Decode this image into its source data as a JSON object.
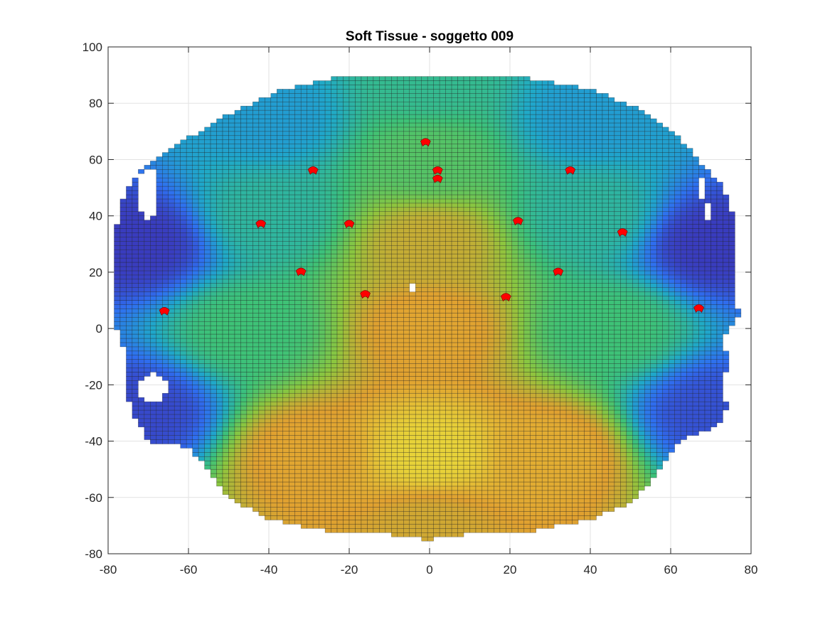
{
  "chart_data": {
    "type": "heatmap",
    "title": "Soft Tissue -  soggetto 009",
    "xlabel": "",
    "ylabel": "",
    "xlim": [
      -80,
      80
    ],
    "ylim": [
      -80,
      100
    ],
    "x_ticks": [
      "-80",
      "-60",
      "-40",
      "-20",
      "0",
      "20",
      "40",
      "60",
      "80"
    ],
    "y_ticks": [
      "100",
      "80",
      "60",
      "40",
      "20",
      "0",
      "-20",
      "-40",
      "-60",
      "-80"
    ],
    "grid": true,
    "surface": {
      "colormap": [
        "#3e26a8",
        "#2f6ff0",
        "#1fa8c9",
        "#3ec277",
        "#8cc63f",
        "#e0a030",
        "#e8d93a"
      ],
      "grid_step": 1.5,
      "edge_color": "#1a1a1a"
    },
    "outline": [
      [
        -20,
        90
      ],
      [
        20,
        90
      ],
      [
        40,
        85
      ],
      [
        52,
        78
      ],
      [
        62,
        68
      ],
      [
        68,
        58
      ],
      [
        72,
        52
      ],
      [
        75,
        45
      ],
      [
        76,
        30
      ],
      [
        76,
        15
      ],
      [
        77,
        5
      ],
      [
        75,
        0
      ],
      [
        72,
        -5
      ],
      [
        75,
        -10
      ],
      [
        73,
        -20
      ],
      [
        74,
        -28
      ],
      [
        72,
        -35
      ],
      [
        62,
        -40
      ],
      [
        58,
        -48
      ],
      [
        55,
        -55
      ],
      [
        50,
        -62
      ],
      [
        40,
        -68
      ],
      [
        25,
        -72
      ],
      [
        10,
        -73
      ],
      [
        0,
        -75
      ],
      [
        -10,
        -73
      ],
      [
        -25,
        -72
      ],
      [
        -40,
        -68
      ],
      [
        -50,
        -60
      ],
      [
        -55,
        -50
      ],
      [
        -60,
        -42
      ],
      [
        -70,
        -40
      ],
      [
        -74,
        -30
      ],
      [
        -76,
        -20
      ],
      [
        -76,
        -8
      ],
      [
        -78,
        0
      ],
      [
        -78,
        15
      ],
      [
        -78,
        35
      ],
      [
        -76,
        48
      ],
      [
        -72,
        57
      ],
      [
        -62,
        66
      ],
      [
        -50,
        76
      ],
      [
        -38,
        84
      ]
    ],
    "holes": [
      {
        "x": -70,
        "y": 48,
        "rx": 2.5,
        "ry": 9
      },
      {
        "x": -69,
        "y": -21,
        "rx": 3.5,
        "ry": 5
      },
      {
        "x": 68,
        "y": 50,
        "rx": 1.2,
        "ry": 4
      },
      {
        "x": 69,
        "y": 42,
        "rx": 1.0,
        "ry": 3
      },
      {
        "x": -4,
        "y": 15,
        "rx": 0.9,
        "ry": 1.6
      }
    ],
    "surface_levels": [
      {
        "x": -72,
        "y": 30,
        "v": 0.05
      },
      {
        "x": 70,
        "y": 30,
        "v": 0.05
      },
      {
        "x": -72,
        "y": -30,
        "v": 0.08
      },
      {
        "x": 70,
        "y": -30,
        "v": 0.1
      },
      {
        "x": 0,
        "y": 88,
        "v": 0.45
      },
      {
        "x": -40,
        "y": 75,
        "v": 0.3
      },
      {
        "x": 40,
        "y": 75,
        "v": 0.3
      },
      {
        "x": 0,
        "y": 60,
        "v": 0.55
      },
      {
        "x": 0,
        "y": 30,
        "v": 0.78
      },
      {
        "x": 0,
        "y": 0,
        "v": 0.85
      },
      {
        "x": 0,
        "y": -45,
        "v": 0.98
      },
      {
        "x": -30,
        "y": -45,
        "v": 0.85
      },
      {
        "x": 30,
        "y": -45,
        "v": 0.87
      },
      {
        "x": -45,
        "y": 0,
        "v": 0.5
      },
      {
        "x": 45,
        "y": 0,
        "v": 0.5
      },
      {
        "x": 0,
        "y": -70,
        "v": 0.8
      },
      {
        "x": -40,
        "y": 40,
        "v": 0.42
      },
      {
        "x": 40,
        "y": 40,
        "v": 0.42
      }
    ],
    "markers": [
      {
        "x": -1,
        "y": 66
      },
      {
        "x": -29,
        "y": 56
      },
      {
        "x": 2,
        "y": 56
      },
      {
        "x": 2,
        "y": 53
      },
      {
        "x": 35,
        "y": 56
      },
      {
        "x": -42,
        "y": 37
      },
      {
        "x": -20,
        "y": 37
      },
      {
        "x": 22,
        "y": 38
      },
      {
        "x": 48,
        "y": 34
      },
      {
        "x": -32,
        "y": 20
      },
      {
        "x": 32,
        "y": 20
      },
      {
        "x": -16,
        "y": 12
      },
      {
        "x": 19,
        "y": 11
      },
      {
        "x": -66,
        "y": 6
      },
      {
        "x": 67,
        "y": 7
      }
    ],
    "marker_color": "#ff0000"
  }
}
